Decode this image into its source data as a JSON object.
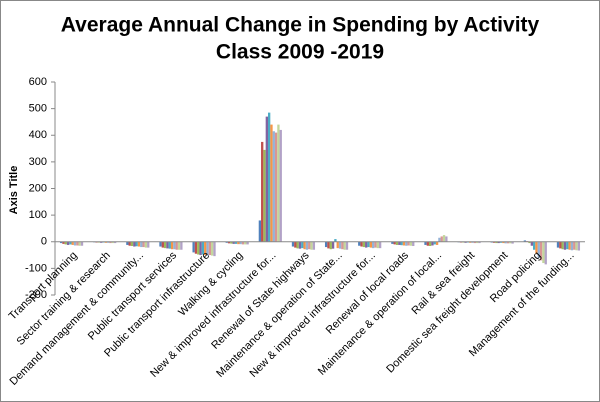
{
  "chart_data": {
    "type": "bar",
    "title": [
      "Average Annual Change in Spending by Activity",
      "Class 2009 -2019"
    ],
    "y_label": "Axis Title",
    "categories": [
      "Transport planning",
      "Sector training & research",
      "Demand management & community...",
      "Public transport services",
      "Public transport infrastructure",
      "Walking & cycling",
      "New & improved infrastructure for...",
      "Renewal of State highways",
      "Maintenance & operation of State...",
      "New & improved infrastructure for...",
      "Renewal of local roads",
      "Maintenance & operation of local...",
      "Rail & sea freight",
      "Domestic sea freight development",
      "Road policing",
      "Management of the funding..."
    ],
    "series": [
      {
        "color": "#4F81BD",
        "values": [
          -5,
          -2,
          -12,
          -18,
          -40,
          -4,
          80,
          -18,
          -20,
          -15,
          -8,
          -12,
          -2,
          -3,
          5,
          -22
        ]
      },
      {
        "color": "#C0504D",
        "values": [
          -8,
          -3,
          -15,
          -22,
          -45,
          -6,
          375,
          -22,
          -25,
          -18,
          -10,
          -15,
          -3,
          -4,
          2,
          -25
        ]
      },
      {
        "color": "#9BBB59",
        "values": [
          -10,
          -3,
          -16,
          -24,
          -48,
          -7,
          345,
          -25,
          -28,
          -20,
          -12,
          -16,
          -3,
          -5,
          -5,
          -28
        ]
      },
      {
        "color": "#8064A2",
        "values": [
          -12,
          -4,
          -18,
          -25,
          -50,
          -8,
          470,
          -26,
          -26,
          -22,
          -12,
          -14,
          -4,
          -5,
          -15,
          -30
        ]
      },
      {
        "color": "#4BACC6",
        "values": [
          -10,
          -3,
          -17,
          -26,
          -48,
          -8,
          485,
          -24,
          10,
          -20,
          -13,
          -10,
          -3,
          -4,
          -30,
          -28
        ]
      },
      {
        "color": "#F79646",
        "values": [
          -12,
          -4,
          -18,
          -28,
          -50,
          -9,
          440,
          -28,
          -24,
          -22,
          -14,
          -12,
          -4,
          -5,
          -45,
          -30
        ]
      },
      {
        "color": "#95B3D7",
        "values": [
          -14,
          -4,
          -20,
          -28,
          -52,
          -9,
          415,
          -30,
          -26,
          -24,
          -15,
          15,
          -4,
          -6,
          -60,
          -32
        ]
      },
      {
        "color": "#D99694",
        "values": [
          -14,
          -5,
          -20,
          -30,
          -50,
          -10,
          410,
          -28,
          -28,
          -22,
          -14,
          20,
          -5,
          -6,
          -70,
          -30
        ]
      },
      {
        "color": "#C3D69B",
        "values": [
          -15,
          -5,
          -22,
          -30,
          -52,
          -10,
          440,
          -30,
          -30,
          -24,
          -15,
          25,
          -5,
          -6,
          -80,
          -32
        ]
      },
      {
        "color": "#B2A2C7",
        "values": [
          -15,
          -5,
          -22,
          -30,
          -54,
          -10,
          420,
          -30,
          -30,
          -24,
          -16,
          20,
          -5,
          -7,
          -85,
          -33
        ]
      }
    ],
    "ylim": [
      -200,
      600
    ],
    "yticks": [
      -200,
      -100,
      0,
      100,
      200,
      300,
      400,
      500,
      600
    ],
    "grid": false
  }
}
